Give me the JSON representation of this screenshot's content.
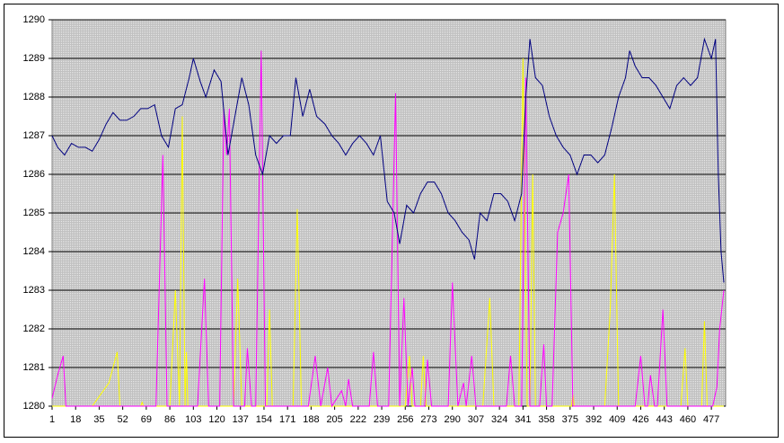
{
  "chart_data": {
    "type": "line",
    "xlim": [
      1,
      486
    ],
    "xticks": [
      1,
      18,
      35,
      52,
      69,
      86,
      103,
      120,
      137,
      154,
      171,
      188,
      205,
      222,
      239,
      256,
      273,
      290,
      307,
      324,
      341,
      358,
      375,
      392,
      409,
      426,
      443,
      460,
      477
    ],
    "ylim": [
      1280,
      1290
    ],
    "yticks": [
      1280,
      1281,
      1282,
      1283,
      1284,
      1285,
      1286,
      1287,
      1288,
      1289,
      1290
    ],
    "grid": true,
    "series": [
      {
        "color": "#ffff00",
        "x": [
          1,
          30,
          36,
          42,
          48,
          50,
          65,
          66,
          67,
          86,
          90,
          93,
          95,
          97,
          98,
          99,
          132,
          135,
          138,
          156,
          158,
          160,
          175,
          178,
          181,
          256,
          259,
          261,
          267,
          269,
          271,
          312,
          317,
          320,
          338,
          341,
          344,
          346,
          348,
          350,
          376,
          377,
          378,
          400,
          404,
          407,
          410,
          455,
          458,
          460,
          470,
          472,
          474,
          486
        ],
        "values": [
          1280,
          1280,
          1280.3,
          1280.6,
          1281.4,
          1280,
          1280,
          1280.1,
          1280,
          1280,
          1283,
          1280,
          1287.5,
          1280,
          1281.4,
          1280,
          1280,
          1283.3,
          1280,
          1280,
          1282.5,
          1280,
          1280,
          1285.1,
          1280,
          1280,
          1281.3,
          1280,
          1280,
          1281.3,
          1280,
          1280,
          1282.8,
          1280,
          1280,
          1289,
          1280,
          1280,
          1286,
          1280,
          1280,
          1280.3,
          1280,
          1280,
          1282.5,
          1286,
          1280,
          1280,
          1281.5,
          1280,
          1280,
          1282.2,
          1280,
          1280
        ]
      },
      {
        "color": "#ff00ff",
        "x": [
          1,
          5,
          9,
          11,
          76,
          81,
          84,
          106,
          111,
          114,
          122,
          125,
          127,
          129,
          132,
          140,
          142,
          145,
          148,
          152,
          155,
          186,
          191,
          195,
          200,
          203,
          210,
          213,
          215,
          218,
          230,
          233,
          236,
          244,
          249,
          252,
          255,
          258,
          261,
          263,
          270,
          272,
          275,
          287,
          290,
          294,
          298,
          300,
          304,
          307,
          329,
          332,
          335,
          340,
          343,
          346,
          353,
          356,
          358,
          362,
          366,
          370,
          374,
          377,
          422,
          426,
          429,
          431,
          433,
          436,
          438,
          442,
          445,
          478,
          481,
          483,
          486
        ],
        "values": [
          1280.2,
          1280.8,
          1281.3,
          1280,
          1280,
          1286.5,
          1280,
          1280,
          1283.3,
          1280,
          1280,
          1287.7,
          1286.5,
          1287.7,
          1280,
          1280,
          1281.5,
          1280,
          1280,
          1289.2,
          1280,
          1280,
          1281.3,
          1280,
          1281,
          1280,
          1280.4,
          1280,
          1280.7,
          1280,
          1280,
          1281.4,
          1280,
          1280,
          1288.1,
          1280,
          1282.8,
          1280,
          1281,
          1280,
          1280,
          1281.2,
          1280,
          1280,
          1283.2,
          1280,
          1280.6,
          1280,
          1281.3,
          1280,
          1280,
          1281.3,
          1280,
          1280,
          1288.5,
          1280,
          1280,
          1281.6,
          1280,
          1280,
          1284.5,
          1285,
          1286,
          1280,
          1280,
          1281.3,
          1280,
          1280,
          1280.8,
          1280,
          1280,
          1282.5,
          1280,
          1280,
          1280.5,
          1282,
          1283
        ]
      },
      {
        "color": "#000080",
        "x": [
          1,
          5,
          10,
          15,
          20,
          25,
          30,
          35,
          40,
          45,
          50,
          55,
          60,
          65,
          70,
          75,
          80,
          85,
          90,
          95,
          100,
          103,
          108,
          112,
          118,
          123,
          128,
          133,
          138,
          143,
          148,
          153,
          158,
          163,
          168,
          173,
          177,
          182,
          187,
          192,
          198,
          203,
          208,
          213,
          218,
          223,
          228,
          233,
          238,
          243,
          248,
          252,
          257,
          262,
          267,
          272,
          277,
          282,
          287,
          292,
          297,
          302,
          306,
          310,
          315,
          320,
          325,
          330,
          335,
          340,
          343,
          346,
          350,
          355,
          360,
          365,
          370,
          375,
          380,
          385,
          390,
          395,
          400,
          405,
          410,
          415,
          418,
          422,
          427,
          432,
          437,
          442,
          447,
          452,
          457,
          462,
          467,
          472,
          477,
          480,
          482,
          484,
          486
        ],
        "values": [
          1287.0,
          1286.7,
          1286.5,
          1286.8,
          1286.7,
          1286.7,
          1286.6,
          1286.9,
          1287.3,
          1287.6,
          1287.4,
          1287.4,
          1287.5,
          1287.7,
          1287.7,
          1287.8,
          1287.0,
          1286.7,
          1287.7,
          1287.8,
          1288.5,
          1289.0,
          1288.4,
          1288.0,
          1288.7,
          1288.4,
          1286.5,
          1287.5,
          1288.5,
          1287.8,
          1286.5,
          1286.0,
          1287.0,
          1286.8,
          1287.0,
          1287.0,
          1288.5,
          1287.5,
          1288.2,
          1287.5,
          1287.3,
          1287.0,
          1286.8,
          1286.5,
          1286.8,
          1287.0,
          1286.8,
          1286.5,
          1287.0,
          1285.3,
          1285.0,
          1284.2,
          1285.2,
          1285.0,
          1285.5,
          1285.8,
          1285.8,
          1285.5,
          1285.0,
          1284.8,
          1284.5,
          1284.3,
          1283.8,
          1285.0,
          1284.8,
          1285.5,
          1285.5,
          1285.3,
          1284.8,
          1285.5,
          1288.0,
          1289.5,
          1288.5,
          1288.3,
          1287.5,
          1287.0,
          1286.7,
          1286.5,
          1286.0,
          1286.5,
          1286.5,
          1286.3,
          1286.5,
          1287.2,
          1288.0,
          1288.5,
          1289.2,
          1288.8,
          1288.5,
          1288.5,
          1288.3,
          1288.0,
          1287.7,
          1288.3,
          1288.5,
          1288.3,
          1288.5,
          1289.5,
          1289.0,
          1289.5,
          1286.0,
          1284.0,
          1283.2
        ]
      }
    ]
  }
}
